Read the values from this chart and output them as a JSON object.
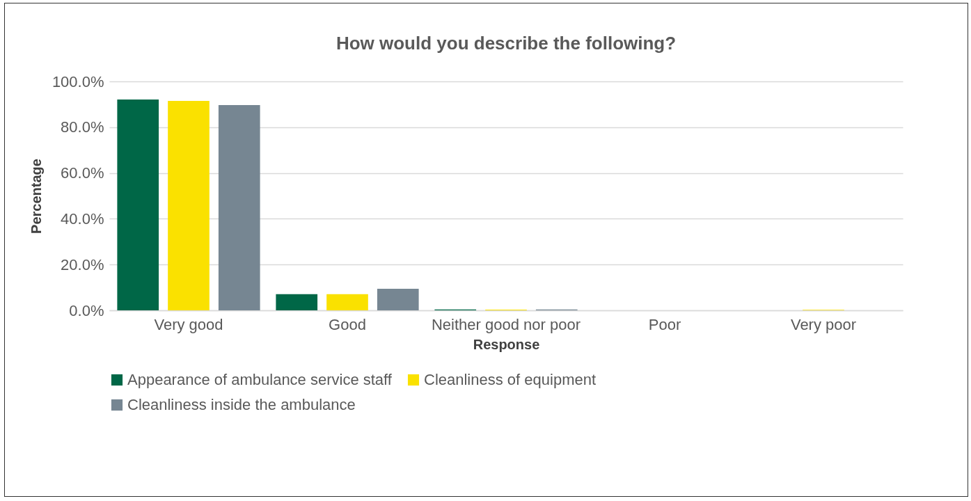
{
  "chart_data": {
    "type": "bar",
    "title": "How would you describe the following?",
    "xlabel": "Response",
    "ylabel": "Percentage",
    "categories": [
      "Very good",
      "Good",
      "Neither good nor poor",
      "Poor",
      "Very poor"
    ],
    "series": [
      {
        "name": "Appearance of ambulance service staff",
        "color": "#006747",
        "values": [
          92.1,
          7.1,
          0.4,
          0,
          0
        ]
      },
      {
        "name": "Cleanliness of equipment",
        "color": "#fae100",
        "values": [
          91.5,
          7.1,
          0.3,
          0,
          0.2
        ]
      },
      {
        "name": "Cleanliness inside the ambulance",
        "color": "#768692",
        "values": [
          89.7,
          9.4,
          0.4,
          0,
          0
        ]
      }
    ],
    "ylim": [
      0,
      100
    ],
    "yticks": [
      {
        "value": 0,
        "label": "0.0%"
      },
      {
        "value": 20,
        "label": "20.0%"
      },
      {
        "value": 40,
        "label": "40.0%"
      },
      {
        "value": 60,
        "label": "60.0%"
      },
      {
        "value": 80,
        "label": "80.0%"
      },
      {
        "value": 100,
        "label": "100.0%"
      }
    ],
    "grid": "y",
    "legend": "bottom"
  }
}
